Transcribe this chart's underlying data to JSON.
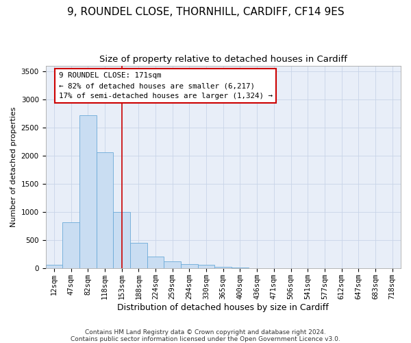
{
  "title1": "9, ROUNDEL CLOSE, THORNHILL, CARDIFF, CF14 9ES",
  "title2": "Size of property relative to detached houses in Cardiff",
  "xlabel": "Distribution of detached houses by size in Cardiff",
  "ylabel": "Number of detached properties",
  "categories": [
    "12sqm",
    "47sqm",
    "82sqm",
    "118sqm",
    "153sqm",
    "188sqm",
    "224sqm",
    "259sqm",
    "294sqm",
    "330sqm",
    "365sqm",
    "400sqm",
    "436sqm",
    "471sqm",
    "506sqm",
    "541sqm",
    "577sqm",
    "612sqm",
    "647sqm",
    "683sqm",
    "718sqm"
  ],
  "bar_values": [
    70,
    820,
    2720,
    2060,
    1000,
    450,
    210,
    130,
    75,
    60,
    30,
    10,
    5,
    3,
    2,
    1,
    0,
    0,
    0,
    0,
    0
  ],
  "bar_color": "#c9ddf2",
  "bar_edge_color": "#6baad8",
  "vline_color": "#cc0000",
  "annotation_box_text": "9 ROUNDEL CLOSE: 171sqm\n← 82% of detached houses are smaller (6,217)\n17% of semi-detached houses are larger (1,324) →",
  "annotation_box_color": "#cc0000",
  "ylim": [
    0,
    3600
  ],
  "yticks": [
    0,
    500,
    1000,
    1500,
    2000,
    2500,
    3000,
    3500
  ],
  "grid_color": "#c8d4e8",
  "bg_color": "#e8eef8",
  "footer": "Contains HM Land Registry data © Crown copyright and database right 2024.\nContains public sector information licensed under the Open Government Licence v3.0.",
  "title1_fontsize": 11,
  "title2_fontsize": 9.5,
  "xlabel_fontsize": 9,
  "ylabel_fontsize": 8,
  "tick_fontsize": 7.5,
  "footer_fontsize": 6.5
}
